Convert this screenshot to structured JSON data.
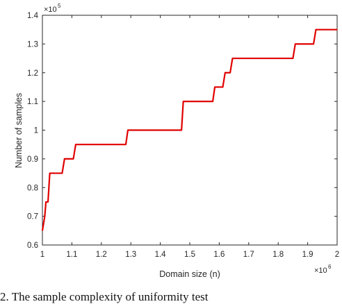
{
  "chart_data": {
    "type": "line",
    "title": "",
    "xlabel": "Domain size (n)",
    "ylabel": "Number of samples",
    "x_multiplier": "×10",
    "x_exponent": "6",
    "y_multiplier": "×10",
    "y_exponent": "5",
    "xlim": [
      1.0,
      2.0
    ],
    "ylim": [
      0.6,
      1.4
    ],
    "x_ticks": [
      "1",
      "1.1",
      "1.2",
      "1.3",
      "1.4",
      "1.5",
      "1.6",
      "1.7",
      "1.8",
      "1.9",
      "2"
    ],
    "y_ticks": [
      "0.6",
      "0.7",
      "0.8",
      "0.9",
      "1",
      "1.1",
      "1.2",
      "1.3",
      "1.4"
    ],
    "grid": false,
    "line_color": "#e00000",
    "series": [
      {
        "x": [
          1.0,
          1.008,
          1.012,
          1.019,
          1.022,
          1.025,
          1.067,
          1.075,
          1.105,
          1.113,
          1.283,
          1.29,
          1.472,
          1.478,
          1.578,
          1.585,
          1.612,
          1.62,
          1.637,
          1.645,
          1.85,
          1.858,
          1.92,
          1.928,
          2.0
        ],
        "y": [
          0.65,
          0.7,
          0.75,
          0.75,
          0.8,
          0.85,
          0.85,
          0.9,
          0.9,
          0.95,
          0.95,
          1.0,
          1.0,
          1.1,
          1.1,
          1.15,
          1.15,
          1.2,
          1.2,
          1.25,
          1.25,
          1.3,
          1.3,
          1.35,
          1.35
        ]
      }
    ]
  },
  "caption": "2.   The sample complexity of uniformity test"
}
